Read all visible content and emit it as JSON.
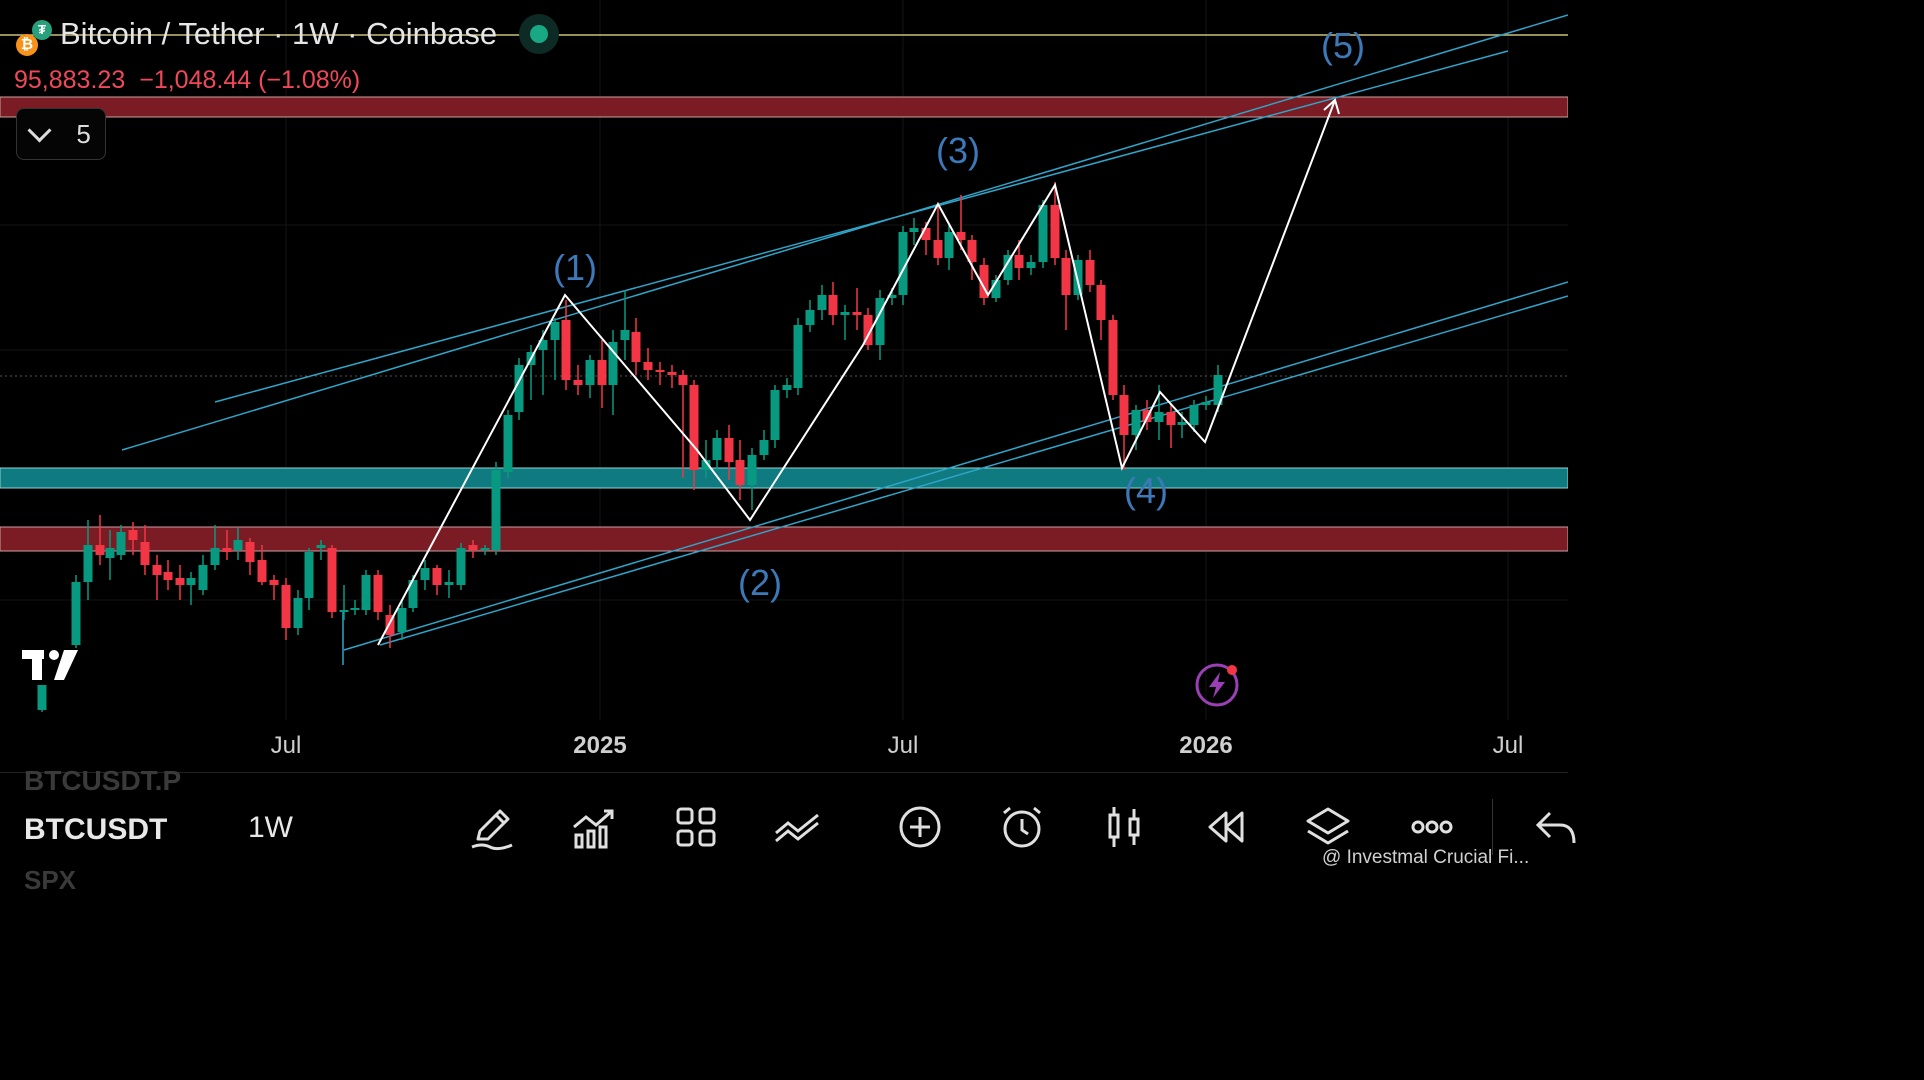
{
  "header": {
    "title": "Bitcoin / Tether · 1W · Coinbase",
    "price": "95,883.23",
    "change": "−1,048.44 (−1.08%)",
    "indicators_count": "5"
  },
  "icons": {
    "base_coin": "bitcoin-icon",
    "quote_coin": "tether-icon",
    "status": "market-open-dot-icon",
    "logo": "tradingview-logo-icon",
    "flash": "lightning-icon"
  },
  "colors": {
    "up": "#089981",
    "down": "#f23645",
    "channel": "#2fa5c9",
    "wave_labels": "#3d79b8",
    "support_zone": "#0f7a80",
    "resistance_zone": "#7b1c24",
    "background": "#000000"
  },
  "waves": {
    "w1": "(1)",
    "w2": "(2)",
    "w3": "(3)",
    "w4": "(4)",
    "w5": "(5)"
  },
  "time_axis": {
    "labels": [
      {
        "text": "Jul",
        "bold": false
      },
      {
        "text": "2025",
        "bold": true
      },
      {
        "text": "Jul",
        "bold": false
      },
      {
        "text": "2026",
        "bold": true
      },
      {
        "text": "Jul",
        "bold": false
      }
    ]
  },
  "bottom_bar": {
    "symbol_prev": "BTCUSDT.P",
    "symbol": "BTCUSDT",
    "symbol_next": "SPX",
    "interval": "1W",
    "tools": [
      {
        "name": "draw-tool-button",
        "icon": "pencil-icon"
      },
      {
        "name": "indicators-button",
        "icon": "chart-indicators-icon"
      },
      {
        "name": "layout-button",
        "icon": "grid-icon"
      },
      {
        "name": "compare-button",
        "icon": "compare-lines-icon"
      },
      {
        "name": "add-button",
        "icon": "plus-circle-icon"
      },
      {
        "name": "alert-button",
        "icon": "alarm-clock-icon"
      },
      {
        "name": "chart-type-button",
        "icon": "candles-icon"
      },
      {
        "name": "replay-button",
        "icon": "rewind-icon"
      },
      {
        "name": "layers-button",
        "icon": "layers-icon"
      },
      {
        "name": "more-button",
        "icon": "more-dots-icon"
      },
      {
        "name": "undo-button",
        "icon": "undo-arrow-icon"
      }
    ],
    "watermark": "@ Investmal Crucial Fi..."
  }
}
